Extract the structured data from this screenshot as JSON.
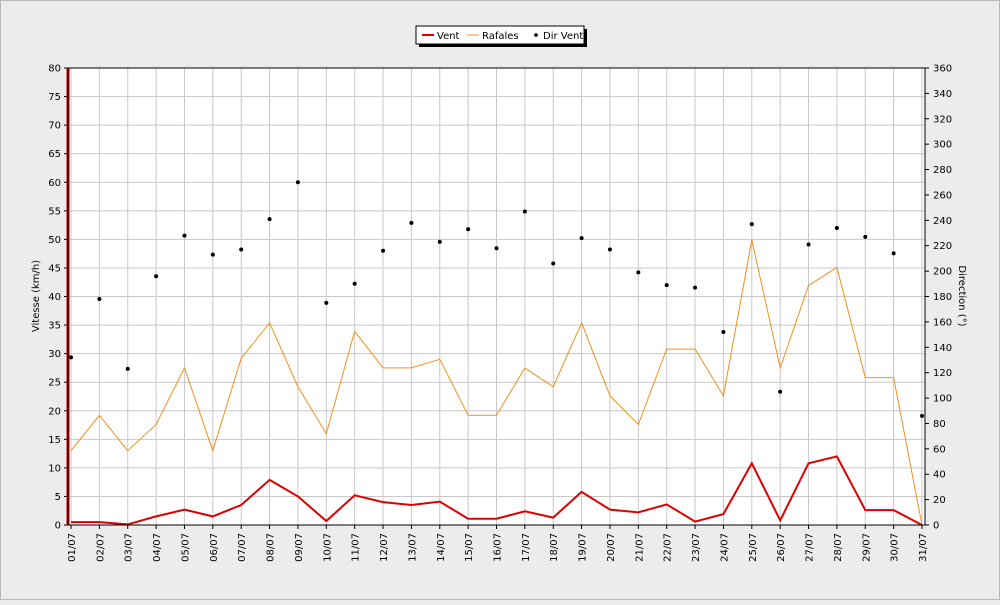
{
  "chart_data": {
    "type": "line",
    "title": "",
    "xlabel": "",
    "ylabel": "Vitesse (km/h)",
    "y2label": "Direction (°)",
    "ylim": [
      0,
      80
    ],
    "y2lim": [
      0,
      360
    ],
    "yticks": [
      "0",
      "5",
      "10",
      "15",
      "20",
      "25",
      "30",
      "35",
      "40",
      "45",
      "50",
      "55",
      "60",
      "65",
      "70",
      "75",
      "80"
    ],
    "y2ticks": [
      "0",
      "20",
      "40",
      "60",
      "80",
      "100",
      "120",
      "140",
      "160",
      "180",
      "200",
      "220",
      "240",
      "260",
      "280",
      "300",
      "320",
      "340",
      "360"
    ],
    "categories": [
      "01/07",
      "02/07",
      "03/07",
      "04/07",
      "05/07",
      "06/07",
      "07/07",
      "08/07",
      "09/07",
      "10/07",
      "11/07",
      "12/07",
      "13/07",
      "14/07",
      "15/07",
      "16/07",
      "17/07",
      "18/07",
      "19/07",
      "20/07",
      "21/07",
      "22/07",
      "23/07",
      "24/07",
      "25/07",
      "26/07",
      "27/07",
      "28/07",
      "29/07",
      "30/07",
      "31/07"
    ],
    "grid": true,
    "legend_position": "top-center",
    "series": [
      {
        "name": "Vent",
        "type": "line",
        "axis": "left",
        "color": "#dd0000",
        "values": [
          0.5,
          0.5,
          0.1,
          1.5,
          2.7,
          1.5,
          3.5,
          7.9,
          5.0,
          0.7,
          5.2,
          4.0,
          3.5,
          4.1,
          1.1,
          1.1,
          2.4,
          1.3,
          5.8,
          2.7,
          2.2,
          3.6,
          0.6,
          1.9,
          10.8,
          0.8,
          10.8,
          12.0,
          2.6,
          2.6,
          0.0
        ]
      },
      {
        "name": "Rafales",
        "type": "line",
        "axis": "left",
        "color": "#f0901e",
        "values": [
          13.0,
          19.2,
          13.0,
          17.6,
          27.5,
          13.0,
          29.2,
          35.4,
          24.2,
          16.0,
          33.9,
          27.5,
          27.5,
          29.0,
          19.2,
          19.2,
          27.5,
          24.2,
          35.4,
          22.6,
          17.6,
          30.8,
          30.8,
          22.6,
          49.9,
          27.5,
          41.9,
          45.1,
          25.8,
          25.8,
          0.0
        ]
      },
      {
        "name": "Dir Vent",
        "type": "scatter",
        "axis": "right",
        "color": "#000000",
        "values": [
          132,
          178,
          123,
          196,
          228,
          213,
          217,
          241,
          270,
          175,
          190,
          216,
          238,
          223,
          233,
          218,
          247,
          206,
          226,
          217,
          199,
          189,
          187,
          152,
          237,
          105,
          221,
          234,
          227,
          214,
          86
        ]
      }
    ]
  }
}
